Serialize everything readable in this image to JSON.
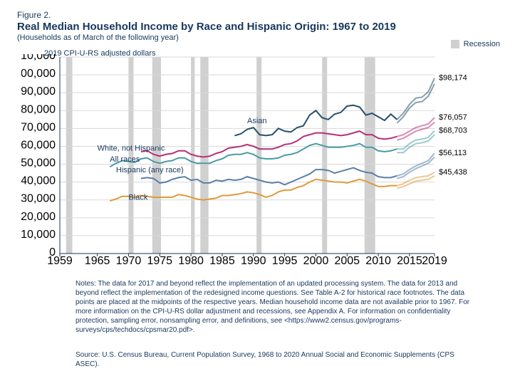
{
  "figure_number": "Figure 2.",
  "title": "Real Median Household Income by Race and Hispanic Origin: 1967 to 2019",
  "subtitle": "(Households as of March of the following year)",
  "y_axis_title": "2019 CPI-U-RS adjusted dollars",
  "legend_label": "Recession",
  "notes": "Notes: The data for 2017 and beyond reflect the implementation of an updated processing system. The data for 2013 and beyond reflect the implementation of the redesigned income questions. See Table A-2 for historical race footnotes. The data points are placed at the midpoints of the respective years. Median household income data are not available prior to 1967. For more information on the CPI-U-RS dollar adjustment and recessions, see Appendix A. For information on confidentiality protection, sampling error, nonsampling error, and definitions, see <https://www2.census.gov/programs-surveys/cps/techdocs/cpsmar20.pdf>.",
  "source": "Source: U.S. Census Bureau, Current Population Survey, 1968 to 2020 Annual Social and Economic Supplements (CPS ASEC).",
  "chart": {
    "type": "line",
    "background_color": "#ffffff",
    "grid_color": "#d9d9d9",
    "recession_color": "#d0d0d0",
    "tick_color": "#17375e",
    "x_axis": {
      "min": 1959,
      "max": 2019,
      "ticks": [
        1959,
        1965,
        1970,
        1975,
        1980,
        1985,
        1990,
        1995,
        2000,
        2005,
        2010,
        2015,
        2019
      ]
    },
    "y_axis": {
      "min": 0,
      "max": 110000,
      "tick_step": 10000,
      "tick_format": "comma"
    },
    "recessions": [
      [
        1960,
        1961
      ],
      [
        1970,
        1970.8
      ],
      [
        1973.8,
        1975.2
      ],
      [
        1980,
        1980.6
      ],
      [
        1981.5,
        1982.8
      ],
      [
        1990.5,
        1991.3
      ],
      [
        2001,
        2001.8
      ],
      [
        2007.8,
        2009.5
      ]
    ],
    "series": [
      {
        "name": "Asian",
        "label": "Asian",
        "label_x": 1989,
        "label_y": 73000,
        "color": "#25506c",
        "width": 2,
        "end_label": "$98,174",
        "years": [
          1987,
          1988,
          1989,
          1990,
          1991,
          1992,
          1993,
          1994,
          1995,
          1996,
          1997,
          1998,
          1999,
          2000,
          2001,
          2002,
          2003,
          2004,
          2005,
          2006,
          2007,
          2008,
          2009,
          2010,
          2011,
          2012,
          2013,
          2014,
          2015,
          2016,
          2017,
          2018,
          2019
        ],
        "values": [
          66000,
          67000,
          69500,
          70500,
          66500,
          66000,
          66500,
          70000,
          68500,
          68000,
          70500,
          71500,
          77500,
          80000,
          76000,
          75000,
          78000,
          79000,
          82500,
          83000,
          82000,
          77500,
          78500,
          76500,
          74500,
          78000,
          75000,
          78500,
          83500,
          87000,
          87500,
          90500,
          98174
        ],
        "break_after_index": 26,
        "recent": {
          "years": [
            2013,
            2014,
            2015,
            2016,
            2017,
            2018,
            2019
          ],
          "values": [
            73000,
            76500,
            81500,
            84500,
            85000,
            88000,
            95000
          ]
        }
      },
      {
        "name": "White, not Hispanic",
        "label": "White, not Hispanic",
        "label_x": 1965,
        "label_y": 57500,
        "color": "#b72f78",
        "width": 2,
        "end_label": "$76,057",
        "years": [
          1972,
          1973,
          1974,
          1975,
          1976,
          1977,
          1978,
          1979,
          1980,
          1981,
          1982,
          1983,
          1984,
          1985,
          1986,
          1987,
          1988,
          1989,
          1990,
          1991,
          1992,
          1993,
          1994,
          1995,
          1996,
          1997,
          1998,
          1999,
          2000,
          2001,
          2002,
          2003,
          2004,
          2005,
          2006,
          2007,
          2008,
          2009,
          2010,
          2011,
          2012,
          2013,
          2014,
          2015,
          2016,
          2017,
          2018,
          2019
        ],
        "values": [
          57000,
          57500,
          55500,
          54500,
          55500,
          56000,
          57500,
          57500,
          55500,
          54500,
          54000,
          54500,
          56000,
          57000,
          59000,
          59500,
          60000,
          61000,
          60000,
          58500,
          58500,
          58500,
          59500,
          61000,
          61500,
          63000,
          65500,
          66500,
          67500,
          67500,
          67000,
          66500,
          66000,
          66500,
          67500,
          68500,
          66500,
          66500,
          64500,
          64000,
          64500,
          65500,
          66500,
          68500,
          70500,
          71500,
          72500,
          76057
        ],
        "break_after_index": 41,
        "recent": {
          "years": [
            2013,
            2014,
            2015,
            2016,
            2017,
            2018,
            2019
          ],
          "values": [
            63500,
            64500,
            66500,
            68500,
            69500,
            70500,
            73500
          ]
        }
      },
      {
        "name": "All races",
        "label": "All races",
        "label_x": 1967,
        "label_y": 51500,
        "color": "#4a9ba5",
        "width": 2,
        "end_label": "$68,703",
        "years": [
          1967,
          1968,
          1969,
          1970,
          1971,
          1972,
          1973,
          1974,
          1975,
          1976,
          1977,
          1978,
          1979,
          1980,
          1981,
          1982,
          1983,
          1984,
          1985,
          1986,
          1987,
          1988,
          1989,
          1990,
          1991,
          1992,
          1993,
          1994,
          1995,
          1996,
          1997,
          1998,
          1999,
          2000,
          2001,
          2002,
          2003,
          2004,
          2005,
          2006,
          2007,
          2008,
          2009,
          2010,
          2011,
          2012,
          2013,
          2014,
          2015,
          2016,
          2017,
          2018,
          2019
        ],
        "values": [
          48500,
          50500,
          52000,
          51500,
          51000,
          53000,
          53500,
          51500,
          50500,
          51500,
          52000,
          53500,
          53500,
          51500,
          50500,
          50500,
          50500,
          52000,
          53000,
          55000,
          55500,
          55500,
          56500,
          55500,
          53500,
          53000,
          53000,
          53500,
          55000,
          55500,
          56500,
          58500,
          60500,
          61500,
          60500,
          59500,
          59500,
          59500,
          60000,
          60500,
          61500,
          59500,
          59500,
          57500,
          57000,
          57500,
          58500,
          58500,
          61500,
          63500,
          64000,
          65000,
          68703
        ],
        "break_after_index": 46,
        "recent": {
          "years": [
            2013,
            2014,
            2015,
            2016,
            2017,
            2018,
            2019
          ],
          "values": [
            56500,
            56500,
            59500,
            61500,
            62000,
            63000,
            66500
          ]
        }
      },
      {
        "name": "Hispanic (any race)",
        "label": "Hispanic (any race)",
        "label_x": 1968,
        "label_y": 45500,
        "color": "#5a7fa8",
        "width": 2,
        "end_label": "$56,113",
        "years": [
          1972,
          1973,
          1974,
          1975,
          1976,
          1977,
          1978,
          1979,
          1980,
          1981,
          1982,
          1983,
          1984,
          1985,
          1986,
          1987,
          1988,
          1989,
          1990,
          1991,
          1992,
          1993,
          1994,
          1995,
          1996,
          1997,
          1998,
          1999,
          2000,
          2001,
          2002,
          2003,
          2004,
          2005,
          2006,
          2007,
          2008,
          2009,
          2010,
          2011,
          2012,
          2013,
          2014,
          2015,
          2016,
          2017,
          2018,
          2019
        ],
        "values": [
          42000,
          42500,
          42000,
          39500,
          40000,
          41500,
          42500,
          43000,
          41000,
          41500,
          39500,
          39500,
          41000,
          40500,
          41500,
          41000,
          41500,
          43000,
          42000,
          41000,
          40000,
          39500,
          40000,
          38500,
          40000,
          41500,
          43000,
          44500,
          47000,
          47000,
          46500,
          45000,
          46000,
          47000,
          48000,
          46500,
          45500,
          45000,
          43000,
          42500,
          42500,
          43500,
          44500,
          47000,
          49000,
          50500,
          52000,
          56113
        ],
        "break_after_index": 41,
        "recent": {
          "years": [
            2013,
            2014,
            2015,
            2016,
            2017,
            2018,
            2019
          ],
          "values": [
            42000,
            43000,
            45500,
            47500,
            49000,
            50500,
            54000
          ]
        }
      },
      {
        "name": "Black",
        "label": "Black",
        "label_x": 1970,
        "label_y": 30000,
        "color": "#e09a3a",
        "width": 2,
        "end_label": "$45,438",
        "years": [
          1967,
          1968,
          1969,
          1970,
          1971,
          1972,
          1973,
          1974,
          1975,
          1976,
          1977,
          1978,
          1979,
          1980,
          1981,
          1982,
          1983,
          1984,
          1985,
          1986,
          1987,
          1988,
          1989,
          1990,
          1991,
          1992,
          1993,
          1994,
          1995,
          1996,
          1997,
          1998,
          1999,
          2000,
          2001,
          2002,
          2003,
          2004,
          2005,
          2006,
          2007,
          2008,
          2009,
          2010,
          2011,
          2012,
          2013,
          2014,
          2015,
          2016,
          2017,
          2018,
          2019
        ],
        "values": [
          29500,
          30500,
          32000,
          32000,
          31500,
          32500,
          32000,
          31500,
          31500,
          31500,
          31500,
          33000,
          32500,
          31500,
          30500,
          30000,
          30500,
          31000,
          32500,
          32500,
          33000,
          33500,
          34500,
          34000,
          33000,
          31500,
          32500,
          34500,
          35500,
          35500,
          37000,
          38000,
          40000,
          41500,
          41000,
          40500,
          40000,
          40000,
          39500,
          40500,
          41500,
          40500,
          39000,
          37500,
          37500,
          38000,
          38000,
          39000,
          41000,
          42500,
          43000,
          43500,
          45438
        ],
        "break_after_index": 46,
        "recent": {
          "years": [
            2013,
            2014,
            2015,
            2016,
            2017,
            2018,
            2019
          ],
          "values": [
            36500,
            37500,
            39000,
            40500,
            41000,
            41500,
            43500
          ]
        }
      }
    ]
  }
}
